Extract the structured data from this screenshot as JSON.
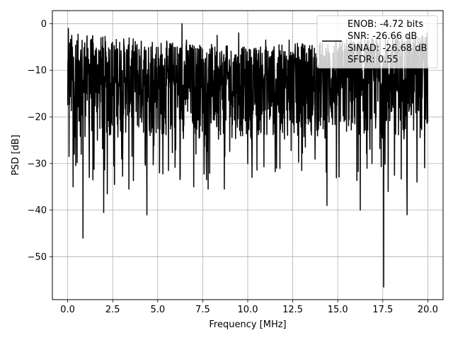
{
  "chart_data": {
    "type": "line",
    "title": "",
    "xlabel": "Frequency [MHz]",
    "ylabel": "PSD [dB]",
    "xlim": [
      -0.85,
      20.85
    ],
    "ylim": [
      -59.2,
      2.8
    ],
    "x_ticks": [
      0.0,
      2.5,
      5.0,
      7.5,
      10.0,
      12.5,
      15.0,
      17.5,
      20.0
    ],
    "x_tick_labels": [
      "0.0",
      "2.5",
      "5.0",
      "7.5",
      "10.0",
      "12.5",
      "15.0",
      "17.5",
      "20.0"
    ],
    "y_ticks": [
      0,
      -10,
      -20,
      -30,
      -40,
      -50
    ],
    "y_tick_labels": [
      "0",
      "−10",
      "−20",
      "−30",
      "−40",
      "−50"
    ],
    "grid": true,
    "legend_position": "top-right",
    "legend_lines": [
      "ENOB: -4.72 bits",
      "SNR: -26.66 dB",
      "SINAD: -26.68 dB",
      "SFDR: 0.55"
    ],
    "series_color": "#000000",
    "series": [
      {
        "x_range": [
          0.0,
          20.0
        ],
        "description_points": [
          [
            0.0,
            -17.5
          ],
          [
            0.04,
            -1.0
          ],
          [
            0.08,
            -28.5
          ],
          [
            0.12,
            -8.0
          ],
          [
            0.3,
            -35.0
          ],
          [
            0.52,
            -29.8
          ],
          [
            0.65,
            -8.0
          ],
          [
            0.85,
            -46.0
          ],
          [
            1.1,
            -9.0
          ],
          [
            1.2,
            -33.0
          ],
          [
            1.4,
            -33.5
          ],
          [
            1.65,
            -25.0
          ],
          [
            2.0,
            -40.5
          ],
          [
            2.2,
            -36.5
          ],
          [
            2.45,
            -12.0
          ],
          [
            2.6,
            -34.5
          ],
          [
            3.4,
            -35.5
          ],
          [
            3.7,
            -6.0
          ],
          [
            4.4,
            -41.0
          ],
          [
            4.7,
            -4.0
          ],
          [
            5.1,
            -32.0
          ],
          [
            5.6,
            -31.5
          ],
          [
            6.0,
            -27.0
          ],
          [
            6.35,
            0.0
          ],
          [
            6.6,
            -3.5
          ],
          [
            7.0,
            -35.0
          ],
          [
            7.8,
            -35.5
          ],
          [
            8.3,
            -2.5
          ],
          [
            8.7,
            -35.5
          ],
          [
            9.5,
            -2.0
          ],
          [
            10.0,
            -30.0
          ],
          [
            11.0,
            -3.5
          ],
          [
            11.6,
            -31.0
          ],
          [
            12.3,
            -3.5
          ],
          [
            13.0,
            -31.5
          ],
          [
            14.0,
            -8.0
          ],
          [
            14.4,
            -39.0
          ],
          [
            15.5,
            -3.5
          ],
          [
            16.25,
            -40.0
          ],
          [
            16.9,
            -30.0
          ],
          [
            17.55,
            -56.5
          ],
          [
            17.8,
            -36.0
          ],
          [
            18.3,
            -3.5
          ],
          [
            18.85,
            -41.0
          ],
          [
            19.4,
            -34.0
          ],
          [
            19.8,
            -10.0
          ],
          [
            20.0,
            -21.0
          ]
        ],
        "typical_band": [
          -25,
          -4
        ]
      }
    ]
  }
}
